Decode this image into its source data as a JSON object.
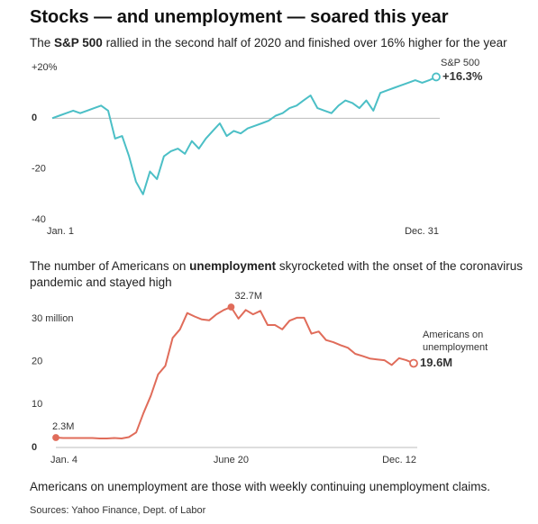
{
  "title": "Stocks — and unemployment — soared this year",
  "footnote": "Americans on unemployment are those with weekly continuing unemployment claims.",
  "source": "Sources: Yahoo Finance, Dept. of Labor",
  "chart_data": [
    {
      "type": "line",
      "subtitle": [
        "The ",
        "S&P 500",
        " rallied in the second half of 2020 and finished over 16% higher for the year"
      ],
      "categories": [
        "Jan. 1",
        null,
        null,
        null,
        null,
        null,
        null,
        null,
        null,
        null,
        null,
        null,
        null,
        null,
        null,
        null,
        null,
        null,
        null,
        null,
        null,
        null,
        null,
        null,
        null,
        null,
        null,
        null,
        null,
        null,
        null,
        null,
        null,
        null,
        null,
        null,
        null,
        null,
        null,
        null,
        null,
        null,
        null,
        null,
        null,
        null,
        null,
        null,
        null,
        null,
        null,
        null,
        null,
        null,
        null,
        "Dec. 31"
      ],
      "series": [
        {
          "name": "S&P 500",
          "color": "#4bbfc6",
          "values": [
            0,
            1,
            2,
            3,
            2,
            3,
            4,
            5,
            3,
            -8,
            -7,
            -15,
            -25,
            -30,
            -21,
            -24,
            -15,
            -13,
            -12,
            -14,
            -9,
            -12,
            -8,
            -5,
            -2,
            -7,
            -5,
            -6,
            -4,
            -3,
            -2,
            -1,
            1,
            2,
            4,
            5,
            7,
            9,
            4,
            3,
            2,
            5,
            7,
            6,
            4,
            7,
            3,
            10,
            11,
            12,
            13,
            14,
            15,
            14,
            15,
            16.3
          ],
          "value_labels": [
            null,
            null,
            null,
            null,
            null,
            null,
            null,
            null,
            null,
            null,
            null,
            null,
            null,
            null,
            null,
            null,
            null,
            null,
            null,
            null,
            null,
            null,
            null,
            null,
            null,
            null,
            null,
            null,
            null,
            null,
            null,
            null,
            null,
            null,
            null,
            null,
            null,
            null,
            null,
            null,
            null,
            null,
            null,
            null,
            null,
            null,
            null,
            null,
            null,
            null,
            null,
            null,
            null,
            null,
            null,
            "+16.3%"
          ]
        }
      ],
      "ylim": [
        -40,
        20
      ],
      "yticks": [
        {
          "value": 20,
          "label": "+20%"
        },
        0,
        -20,
        -40
      ]
    },
    {
      "type": "line",
      "subtitle": [
        "The number of Americans on ",
        "unemployment",
        " skyrocketed with the onset of the coronavirus pandemic and stayed high"
      ],
      "categories": [
        "Jan. 4",
        null,
        null,
        null,
        null,
        null,
        null,
        null,
        null,
        null,
        null,
        null,
        null,
        null,
        null,
        null,
        null,
        null,
        null,
        null,
        null,
        null,
        null,
        null,
        "June 20",
        null,
        null,
        null,
        null,
        null,
        null,
        null,
        null,
        null,
        null,
        null,
        null,
        null,
        null,
        null,
        null,
        null,
        null,
        null,
        null,
        null,
        null,
        null,
        null,
        "Dec. 12"
      ],
      "series": [
        {
          "name": "Americans on unemployment",
          "color": "#e06c5a",
          "values": [
            2.3,
            2.2,
            2.2,
            2.2,
            2.2,
            2.2,
            2.1,
            2.1,
            2.2,
            2.1,
            2.4,
            3.5,
            8,
            12,
            17,
            19,
            25.5,
            27.5,
            31.3,
            30.5,
            29.8,
            29.6,
            31,
            32,
            32.7,
            30,
            32,
            31,
            31.8,
            28.5,
            28.5,
            27.5,
            29.5,
            30.2,
            30.2,
            26.5,
            27,
            25,
            24.5,
            23.8,
            23.2,
            21.8,
            21.3,
            20.7,
            20.5,
            20.3,
            19.2,
            20.8,
            20.3,
            19.6
          ],
          "value_labels": [
            "2.3M",
            null,
            null,
            null,
            null,
            null,
            null,
            null,
            null,
            null,
            null,
            null,
            null,
            null,
            null,
            null,
            null,
            null,
            null,
            null,
            null,
            null,
            null,
            null,
            "32.7M",
            null,
            null,
            null,
            null,
            null,
            null,
            null,
            null,
            null,
            null,
            null,
            null,
            null,
            null,
            null,
            null,
            null,
            null,
            null,
            null,
            null,
            null,
            null,
            null,
            "19.6M"
          ]
        }
      ],
      "ylim": [
        0,
        35
      ],
      "yticks": [
        0,
        10,
        20,
        {
          "value": 30,
          "label": "30 million"
        }
      ]
    }
  ]
}
